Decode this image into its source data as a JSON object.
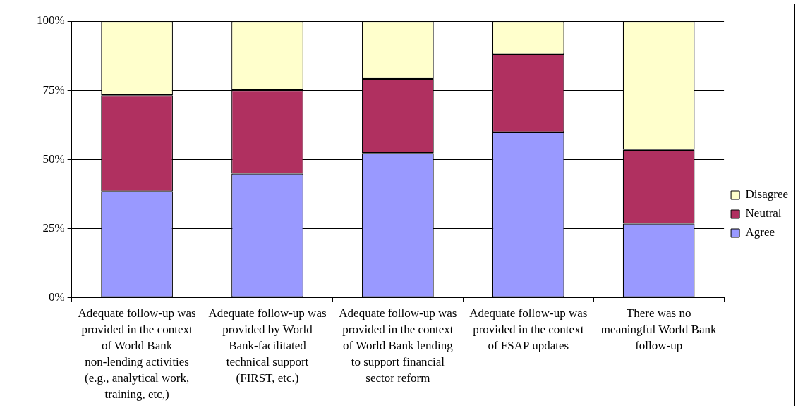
{
  "chart_data": {
    "type": "bar",
    "stacked": true,
    "categories": [
      "Adequate follow-up was provided in the context of World Bank non-lending activities (e.g., analytical work, training, etc,)",
      "Adequate follow-up was provided by World Bank-facilitated technical support (FIRST, etc.)",
      "Adequate follow-up was provided in the context of World Bank lending to support financial sector reform",
      "Adequate follow-up was provided in the context of FSAP updates",
      "There was no meaningful World Bank follow-up"
    ],
    "series": [
      {
        "name": "Agree",
        "color": "#9999ff",
        "values": [
          38.4,
          44.8,
          52.3,
          59.8,
          26.7
        ]
      },
      {
        "name": "Neutral",
        "color": "#b03060",
        "values": [
          34.8,
          30.2,
          26.8,
          28.3,
          26.7
        ]
      },
      {
        "name": "Disagree",
        "color": "#ffffcc",
        "values": [
          26.8,
          25.0,
          20.9,
          11.9,
          46.6
        ]
      }
    ],
    "ylim": [
      0,
      100
    ],
    "yticks": [
      {
        "value": 0,
        "label": "0%"
      },
      {
        "value": 25,
        "label": "25%"
      },
      {
        "value": 50,
        "label": "50%"
      },
      {
        "value": 75,
        "label": "75%"
      },
      {
        "value": 100,
        "label": "100%"
      }
    ],
    "grid": "y",
    "legend": "right"
  }
}
